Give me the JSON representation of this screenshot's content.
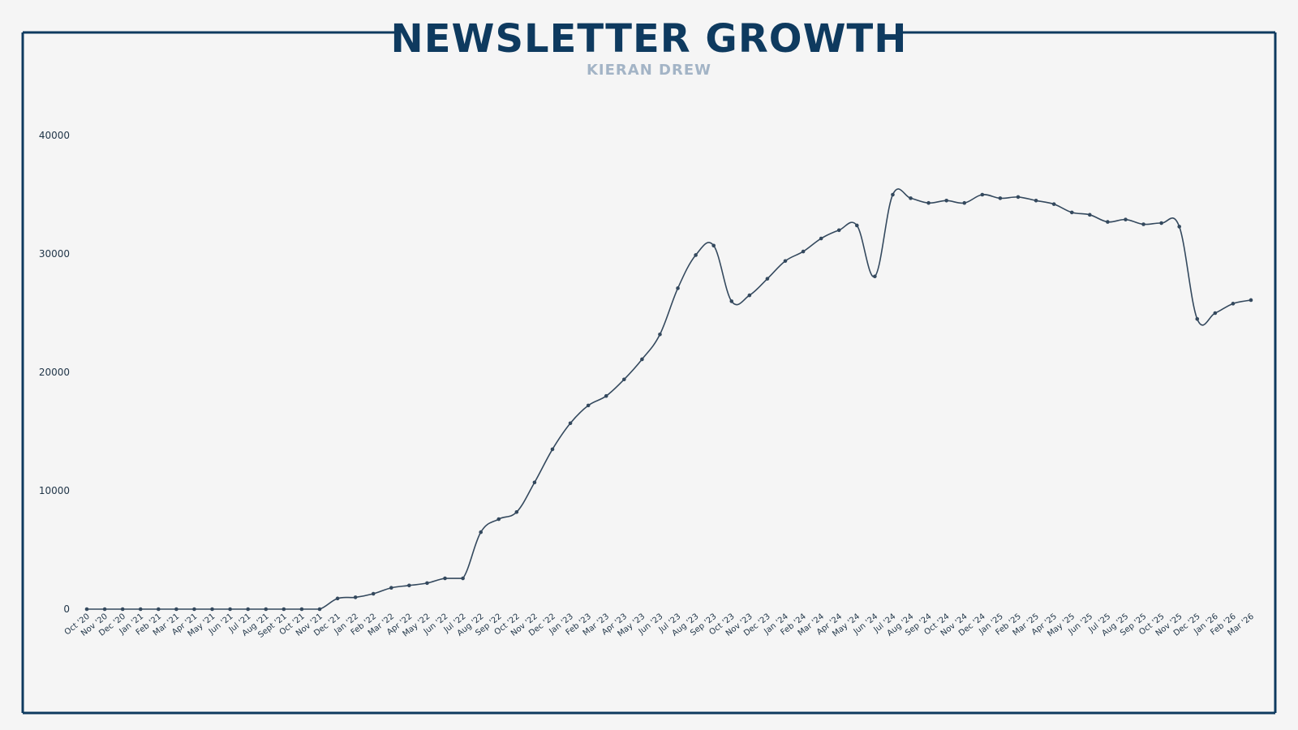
{
  "colors": {
    "background": "#f5f5f5",
    "frame": "#0e3a5f",
    "title": "#0e3a5f",
    "subtitle": "#a3b4c6",
    "line": "#34495e",
    "text": "#1f3447"
  },
  "chart_data": {
    "type": "line",
    "title": "NEWSLETTER GROWTH",
    "subtitle": "KIERAN DREW",
    "xlabel": "",
    "ylabel": "",
    "ylim": [
      0,
      40000
    ],
    "yticks": [
      0,
      10000,
      20000,
      30000,
      40000
    ],
    "grid": false,
    "legend": "none",
    "categories": [
      "Oct '20",
      "Nov '20",
      "Dec '20",
      "Jan '21",
      "Feb '21",
      "Mar '21",
      "Apr '21",
      "May '21",
      "Jun '21",
      "Jul '21",
      "Aug '21",
      "Sept '21",
      "Oct '21",
      "Nov '21",
      "Dec '21",
      "Jan '22",
      "Feb '22",
      "Mar '22",
      "Apr '22",
      "May '22",
      "Jun '22",
      "Jul '22",
      "Aug '22",
      "Sep '22",
      "Oct '22",
      "Nov '22",
      "Dec '22",
      "Jan '23",
      "Feb '23",
      "Mar '23",
      "Apr '23",
      "May '23",
      "Jun '23",
      "Jul '23",
      "Aug '23",
      "Sep '23",
      "Oct '23",
      "Nov '23",
      "Dec '23",
      "Jan '24",
      "Feb '24",
      "Mar '24",
      "Apr '24",
      "May '24",
      "Jun '24",
      "Jul '24",
      "Aug '24",
      "Sep '24",
      "Oct '24",
      "Nov '24",
      "Dec '24",
      "Jan '25",
      "Feb '25",
      "Mar '25",
      "Apr '25",
      "May '25",
      "Jun '25",
      "Jul '25",
      "Aug '25",
      "Sep '25",
      "Oct '25",
      "Nov '25",
      "Dec '25",
      "Jan '26",
      "Feb '26",
      "Mar '26"
    ],
    "series": [
      {
        "values": [
          0,
          0,
          0,
          0,
          0,
          0,
          0,
          0,
          0,
          0,
          0,
          0,
          0,
          0,
          900,
          1000,
          1300,
          1800,
          2000,
          2200,
          2600,
          2600,
          6500,
          7600,
          8200,
          10700,
          13500,
          15700,
          17200,
          18000,
          19400,
          21100,
          23200,
          27100,
          29900,
          30700,
          26000,
          26500,
          27900,
          29400,
          30200,
          31300,
          32000,
          32400,
          28100,
          35000,
          34700,
          34300,
          34500,
          34300,
          35000,
          34700,
          34800,
          34500,
          34200,
          33500,
          33300,
          32700,
          32900,
          32500,
          32600,
          32300,
          24500,
          25000,
          25800,
          26100
        ]
      }
    ]
  }
}
